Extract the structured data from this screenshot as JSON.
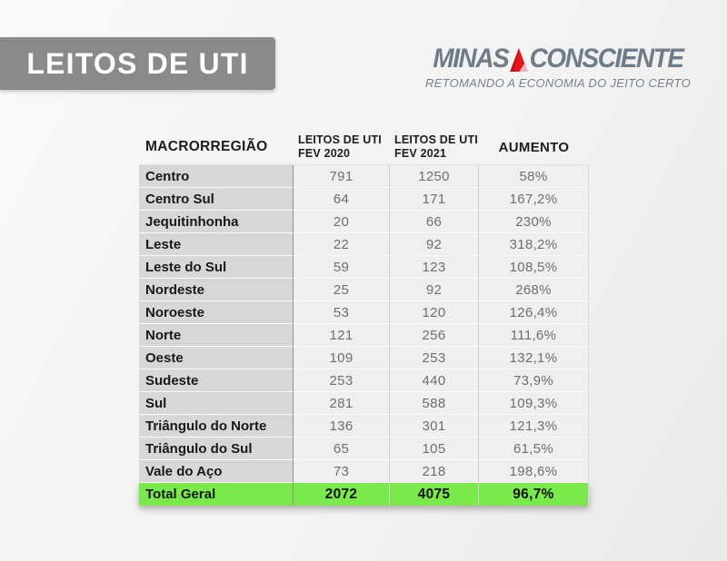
{
  "page": {
    "background_color": "#f3f3f3"
  },
  "title_banner": {
    "label": "LEITOS DE UTI",
    "bg_color": "#8a8a8a",
    "text_color": "#ffffff"
  },
  "logo": {
    "word1": "MINAS",
    "word2": "CONSCIENTE",
    "tagline": "RETOMANDO A ECONOMIA DO JEITO CERTO",
    "text_color": "#6f7c88",
    "triangle_red": "#e8151c",
    "triangle_dark_red": "#c0121a",
    "triangle_inner_pink": "#f0b3b5"
  },
  "table": {
    "headers": [
      {
        "l1": "MACRORREGIÃO",
        "l2": ""
      },
      {
        "l1": "LEITOS DE UTI",
        "l2": "FEV 2020"
      },
      {
        "l1": "LEITOS DE UTI",
        "l2": "FEV 2021"
      },
      {
        "l1": "AUMENTO",
        "l2": ""
      }
    ],
    "region_col_bg": "#d7d7d7",
    "value_col_bg": "#efefef",
    "total_bg": "#79e94c"
  },
  "chart_data": {
    "type": "table",
    "title": "LEITOS DE UTI",
    "columns": [
      "MACRORREGIÃO",
      "LEITOS DE UTI FEV 2020",
      "LEITOS DE UTI FEV 2021",
      "AUMENTO"
    ],
    "rows": [
      [
        "Centro",
        "791",
        "1250",
        "58%"
      ],
      [
        "Centro Sul",
        "64",
        "171",
        "167,2%"
      ],
      [
        "Jequitinhonha",
        "20",
        "66",
        "230%"
      ],
      [
        "Leste",
        "22",
        "92",
        "318,2%"
      ],
      [
        "Leste do Sul",
        "59",
        "123",
        "108,5%"
      ],
      [
        "Nordeste",
        "25",
        "92",
        "268%"
      ],
      [
        "Noroeste",
        "53",
        "120",
        "126,4%"
      ],
      [
        "Norte",
        "121",
        "256",
        "111,6%"
      ],
      [
        "Oeste",
        "109",
        "253",
        "132,1%"
      ],
      [
        "Sudeste",
        "253",
        "440",
        "73,9%"
      ],
      [
        "Sul",
        "281",
        "588",
        "109,3%"
      ],
      [
        "Triângulo do Norte",
        "136",
        "301",
        "121,3%"
      ],
      [
        "Triângulo do Sul",
        "65",
        "105",
        "61,5%"
      ],
      [
        "Vale do Aço",
        "73",
        "218",
        "198,6%"
      ]
    ],
    "total_row": [
      "Total Geral",
      "2072",
      "4075",
      "96,7%"
    ]
  }
}
